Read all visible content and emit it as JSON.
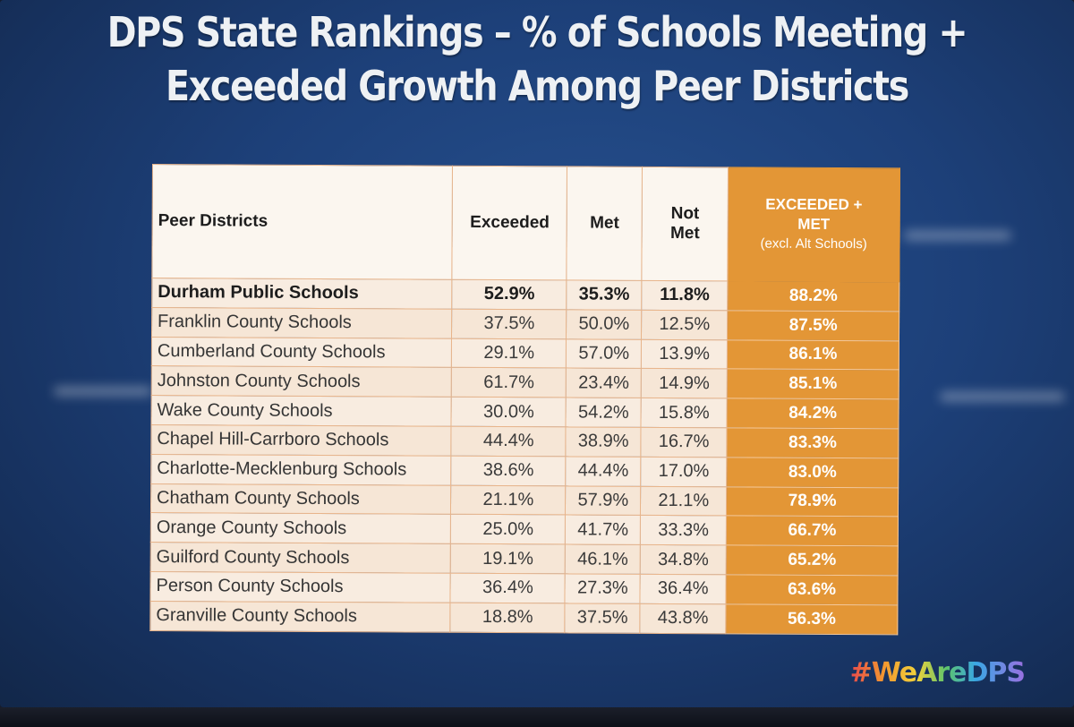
{
  "title": {
    "line1": "DPS State Rankings – % of Schools Meeting +",
    "line2": "Exceeded Growth Among Peer Districts"
  },
  "table": {
    "headers": {
      "district": "Peer Districts",
      "exceeded": "Exceeded",
      "met": "Met",
      "not_met_1": "Not",
      "not_met_2": "Met",
      "total_1": "EXCEEDED +",
      "total_2": "MET",
      "total_note": "(excl. Alt Schools)"
    },
    "rows": [
      {
        "district": "Durham Public Schools",
        "exceeded": "52.9%",
        "met": "35.3%",
        "not_met": "11.8%",
        "total": "88.2%"
      },
      {
        "district": "Franklin County Schools",
        "exceeded": "37.5%",
        "met": "50.0%",
        "not_met": "12.5%",
        "total": "87.5%"
      },
      {
        "district": "Cumberland County Schools",
        "exceeded": "29.1%",
        "met": "57.0%",
        "not_met": "13.9%",
        "total": "86.1%"
      },
      {
        "district": "Johnston County Schools",
        "exceeded": "61.7%",
        "met": "23.4%",
        "not_met": "14.9%",
        "total": "85.1%"
      },
      {
        "district": "Wake County Schools",
        "exceeded": "30.0%",
        "met": "54.2%",
        "not_met": "15.8%",
        "total": "84.2%"
      },
      {
        "district": "Chapel Hill-Carrboro Schools",
        "exceeded": "44.4%",
        "met": "38.9%",
        "not_met": "16.7%",
        "total": "83.3%"
      },
      {
        "district": "Charlotte-Mecklenburg Schools",
        "exceeded": "38.6%",
        "met": "44.4%",
        "not_met": "17.0%",
        "total": "83.0%"
      },
      {
        "district": "Chatham County Schools",
        "exceeded": "21.1%",
        "met": "57.9%",
        "not_met": "21.1%",
        "total": "78.9%"
      },
      {
        "district": "Orange County Schools",
        "exceeded": "25.0%",
        "met": "41.7%",
        "not_met": "33.3%",
        "total": "66.7%"
      },
      {
        "district": "Guilford County Schools",
        "exceeded": "19.1%",
        "met": "46.1%",
        "not_met": "34.8%",
        "total": "65.2%"
      },
      {
        "district": "Person County Schools",
        "exceeded": "36.4%",
        "met": "27.3%",
        "not_met": "36.4%",
        "total": "63.6%"
      },
      {
        "district": "Granville County Schools",
        "exceeded": "18.8%",
        "met": "37.5%",
        "not_met": "43.8%",
        "total": "56.3%"
      }
    ]
  },
  "hashtag": "#WeAreDPS",
  "colors": {
    "background": "#1d4079",
    "highlight": "#e39636",
    "table_row": "#f8ece0",
    "title_text": "#eef1f4"
  }
}
